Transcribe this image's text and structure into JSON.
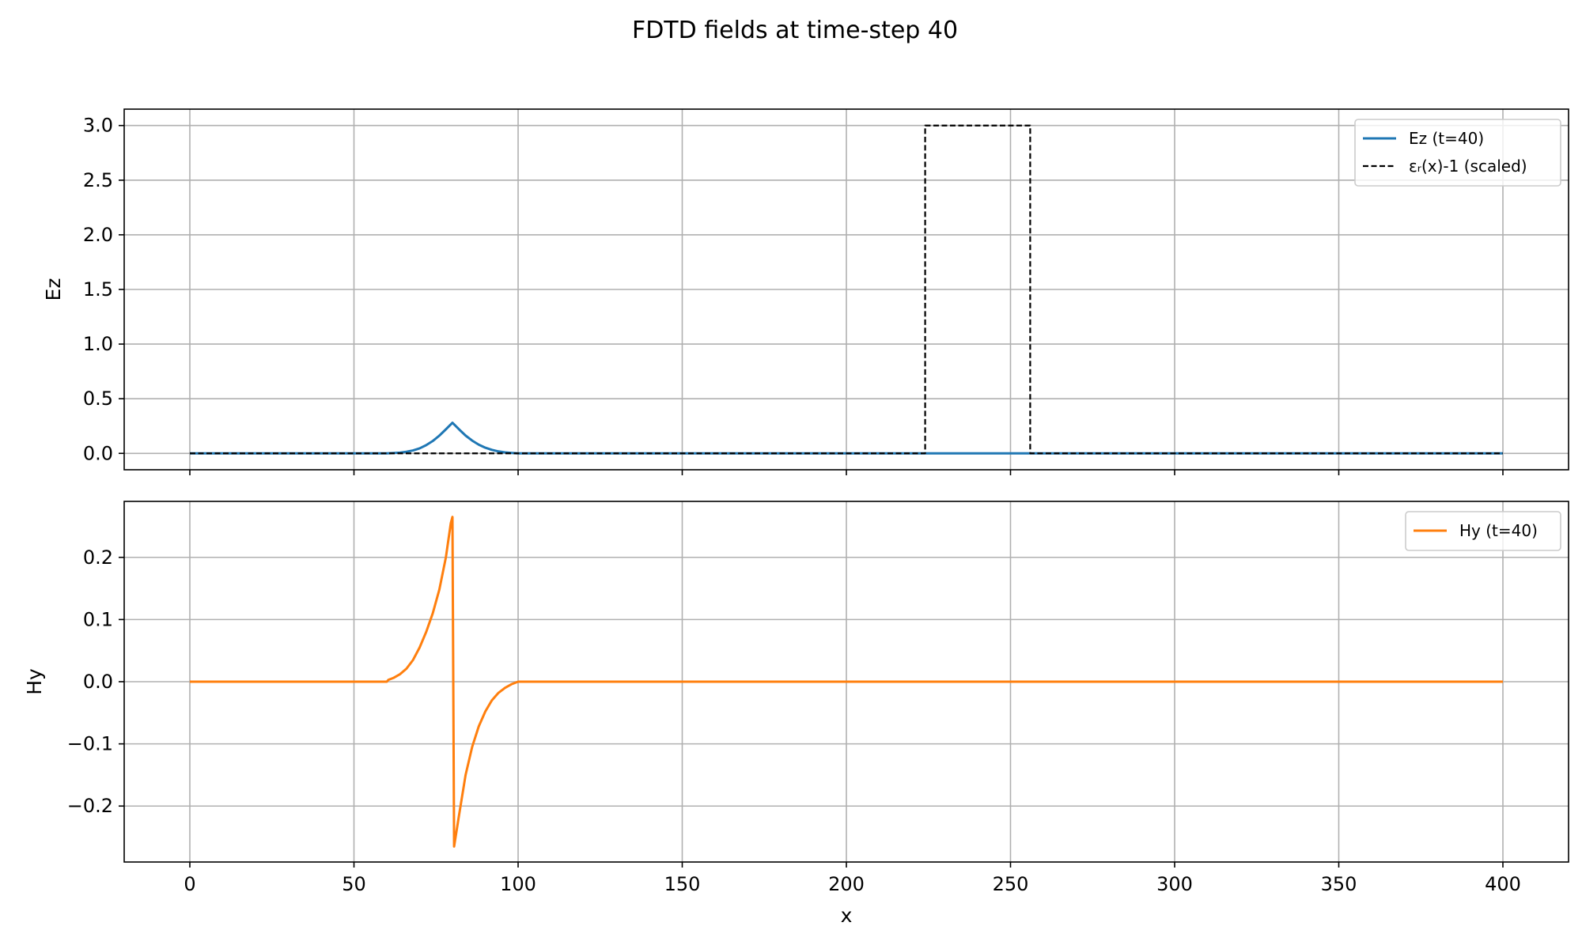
{
  "title": "FDTD fields at time-step 40",
  "chart_data": [
    {
      "type": "line",
      "title": "",
      "xlabel": "",
      "ylabel": "Ez",
      "xlim": [
        -20,
        420
      ],
      "ylim": [
        -0.15,
        3.15
      ],
      "xticks": [
        0,
        50,
        100,
        150,
        200,
        250,
        300,
        350,
        400
      ],
      "yticks": [
        0.0,
        0.5,
        1.0,
        1.5,
        2.0,
        2.5,
        3.0
      ],
      "ytick_labels": [
        "0.0",
        "0.5",
        "1.0",
        "1.5",
        "2.0",
        "2.5",
        "3.0"
      ],
      "grid": true,
      "legend_position": "top-right",
      "series": [
        {
          "name": "Ez (t=40)",
          "color": "#1f77b4",
          "style": "solid",
          "x": [
            0,
            60,
            62,
            64,
            66,
            68,
            70,
            72,
            74,
            76,
            78,
            80,
            82,
            84,
            86,
            88,
            90,
            92,
            94,
            96,
            98,
            100,
            400
          ],
          "y": [
            0,
            0,
            0.003,
            0.007,
            0.015,
            0.027,
            0.046,
            0.075,
            0.113,
            0.162,
            0.22,
            0.28,
            0.22,
            0.163,
            0.117,
            0.08,
            0.052,
            0.032,
            0.018,
            0.009,
            0.004,
            0,
            0
          ]
        },
        {
          "name": "εᵣ(x)-1 (scaled)",
          "color": "#000000",
          "style": "dashed",
          "x": [
            0,
            224,
            224,
            256,
            256,
            400
          ],
          "y": [
            0,
            0,
            3.0,
            3.0,
            0,
            0
          ]
        }
      ]
    },
    {
      "type": "line",
      "title": "",
      "xlabel": "x",
      "ylabel": "Hy",
      "xlim": [
        -20,
        420
      ],
      "ylim": [
        -0.29,
        0.29
      ],
      "xticks": [
        0,
        50,
        100,
        150,
        200,
        250,
        300,
        350,
        400
      ],
      "xtick_labels": [
        "0",
        "50",
        "100",
        "150",
        "200",
        "250",
        "300",
        "350",
        "400"
      ],
      "yticks": [
        -0.2,
        -0.1,
        0.0,
        0.1,
        0.2
      ],
      "ytick_labels": [
        "−0.2",
        "−0.1",
        "0.0",
        "0.1",
        "0.2"
      ],
      "grid": true,
      "legend_position": "top-right",
      "series": [
        {
          "name": "Hy (t=40)",
          "color": "#ff7f0e",
          "style": "solid",
          "x": [
            0,
            60,
            60.5,
            62,
            64,
            66,
            68,
            70,
            72,
            74,
            76,
            78,
            79.5,
            80,
            80.5,
            82,
            84,
            86,
            88,
            90,
            92,
            94,
            96,
            98,
            100,
            400
          ],
          "y": [
            0,
            0,
            0.003,
            0.006,
            0.012,
            0.021,
            0.035,
            0.055,
            0.08,
            0.11,
            0.148,
            0.2,
            0.255,
            0.265,
            -0.265,
            -0.215,
            -0.15,
            -0.105,
            -0.072,
            -0.048,
            -0.03,
            -0.018,
            -0.01,
            -0.004,
            0,
            0
          ]
        }
      ]
    }
  ]
}
